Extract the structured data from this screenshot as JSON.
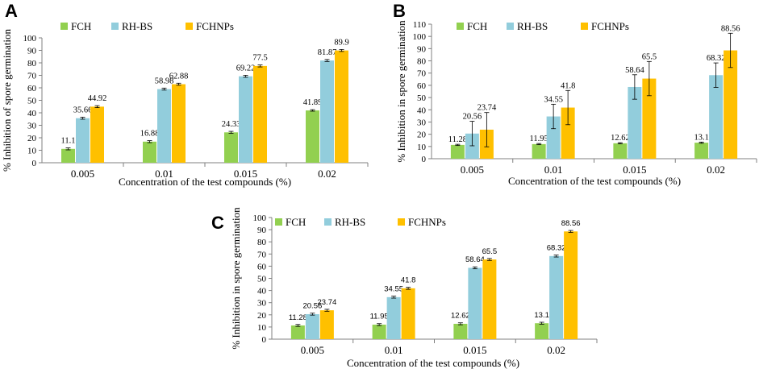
{
  "chart_data": [
    {
      "panel": "A",
      "type": "bar",
      "categories": [
        "0.005",
        "0.01",
        "0.015",
        "0.02"
      ],
      "series": [
        {
          "name": "FCH",
          "color": "#92d050",
          "values": [
            11.1,
            16.88,
            24.33,
            41.89
          ],
          "errors": [
            0.8,
            0.8,
            0.8,
            0.6
          ]
        },
        {
          "name": "RH-BS",
          "color": "#92cddc",
          "values": [
            35.66,
            58.98,
            69.22,
            81.87
          ],
          "errors": [
            0.8,
            0.8,
            0.8,
            0.8
          ]
        },
        {
          "name": "FCHNPs",
          "color": "#ffc000",
          "values": [
            44.92,
            62.88,
            77.5,
            89.9
          ],
          "errors": [
            0.8,
            0.8,
            0.8,
            0.8
          ]
        }
      ],
      "labels": [
        [
          "11.1",
          "16.88",
          "24.33",
          "41.89"
        ],
        [
          "35.66",
          "58.98",
          "69.22",
          "81.87"
        ],
        [
          "44.92",
          "62.88",
          "77.5",
          "89.9"
        ]
      ],
      "yticks": [
        "0",
        "10",
        "20",
        "30",
        "40",
        "50",
        "60",
        "70",
        "80",
        "90",
        "100"
      ],
      "ylim": [
        0,
        100
      ],
      "xlabel": "Concentration  of the test compounds  (%)",
      "ylabel": "% Inhibition of spore germination"
    },
    {
      "panel": "B",
      "type": "bar",
      "categories": [
        "0.005",
        "0.01",
        "0.015",
        "0.02"
      ],
      "series": [
        {
          "name": "FCH",
          "color": "#92d050",
          "values": [
            11.28,
            11.95,
            12.62,
            13.1
          ],
          "errors": [
            0.5,
            0.5,
            0.5,
            0.5
          ]
        },
        {
          "name": "RH-BS",
          "color": "#92cddc",
          "values": [
            20.56,
            34.55,
            58.64,
            68.32
          ],
          "errors": [
            10,
            10,
            10,
            10
          ]
        },
        {
          "name": "FCHNPs",
          "color": "#ffc000",
          "values": [
            23.74,
            41.8,
            65.5,
            88.56
          ],
          "errors": [
            14,
            14,
            14,
            14
          ]
        }
      ],
      "labels": [
        [
          "11.28",
          "11.95",
          "12.62",
          "13.1"
        ],
        [
          "20.56",
          "34.55",
          "58.64",
          "68.32"
        ],
        [
          "23.74",
          "41.8",
          "65.5",
          "88.56"
        ]
      ],
      "yticks": [
        "0",
        "10",
        "20",
        "30",
        "40",
        "50",
        "60",
        "70",
        "80",
        "90",
        "100",
        "110"
      ],
      "ylim": [
        0,
        110
      ],
      "xlabel": "Concentration  of the test compounds  (%)",
      "ylabel": "% Inhibition  in spore germination"
    },
    {
      "panel": "C",
      "type": "bar",
      "categories": [
        "0.005",
        "0.01",
        "0.015",
        "0.02"
      ],
      "series": [
        {
          "name": "FCH",
          "color": "#92d050",
          "values": [
            11.28,
            11.95,
            12.62,
            13.1
          ],
          "errors": [
            0.8,
            0.8,
            0.8,
            0.8
          ]
        },
        {
          "name": "RH-BS",
          "color": "#92cddc",
          "values": [
            20.56,
            34.55,
            58.64,
            68.32
          ],
          "errors": [
            0.8,
            0.8,
            0.8,
            0.8
          ]
        },
        {
          "name": "FCHNPs",
          "color": "#ffc000",
          "values": [
            23.74,
            41.8,
            65.5,
            88.56
          ],
          "errors": [
            0.8,
            0.8,
            0.8,
            0.8
          ]
        }
      ],
      "labels": [
        [
          "11.28",
          "11.95",
          "12.62",
          "13.1"
        ],
        [
          "20.56",
          "34.55",
          "58.64",
          "68.32"
        ],
        [
          "23.74",
          "41.8",
          "65.5",
          "88.56"
        ]
      ],
      "yticks": [
        "0",
        "10",
        "20",
        "30",
        "40",
        "50",
        "60",
        "70",
        "80",
        "90",
        "100"
      ],
      "ylim": [
        0,
        100
      ],
      "xlabel": "Concentration  of the test compounds  (%)",
      "ylabel": "% Inhibition  in spore germination"
    }
  ]
}
